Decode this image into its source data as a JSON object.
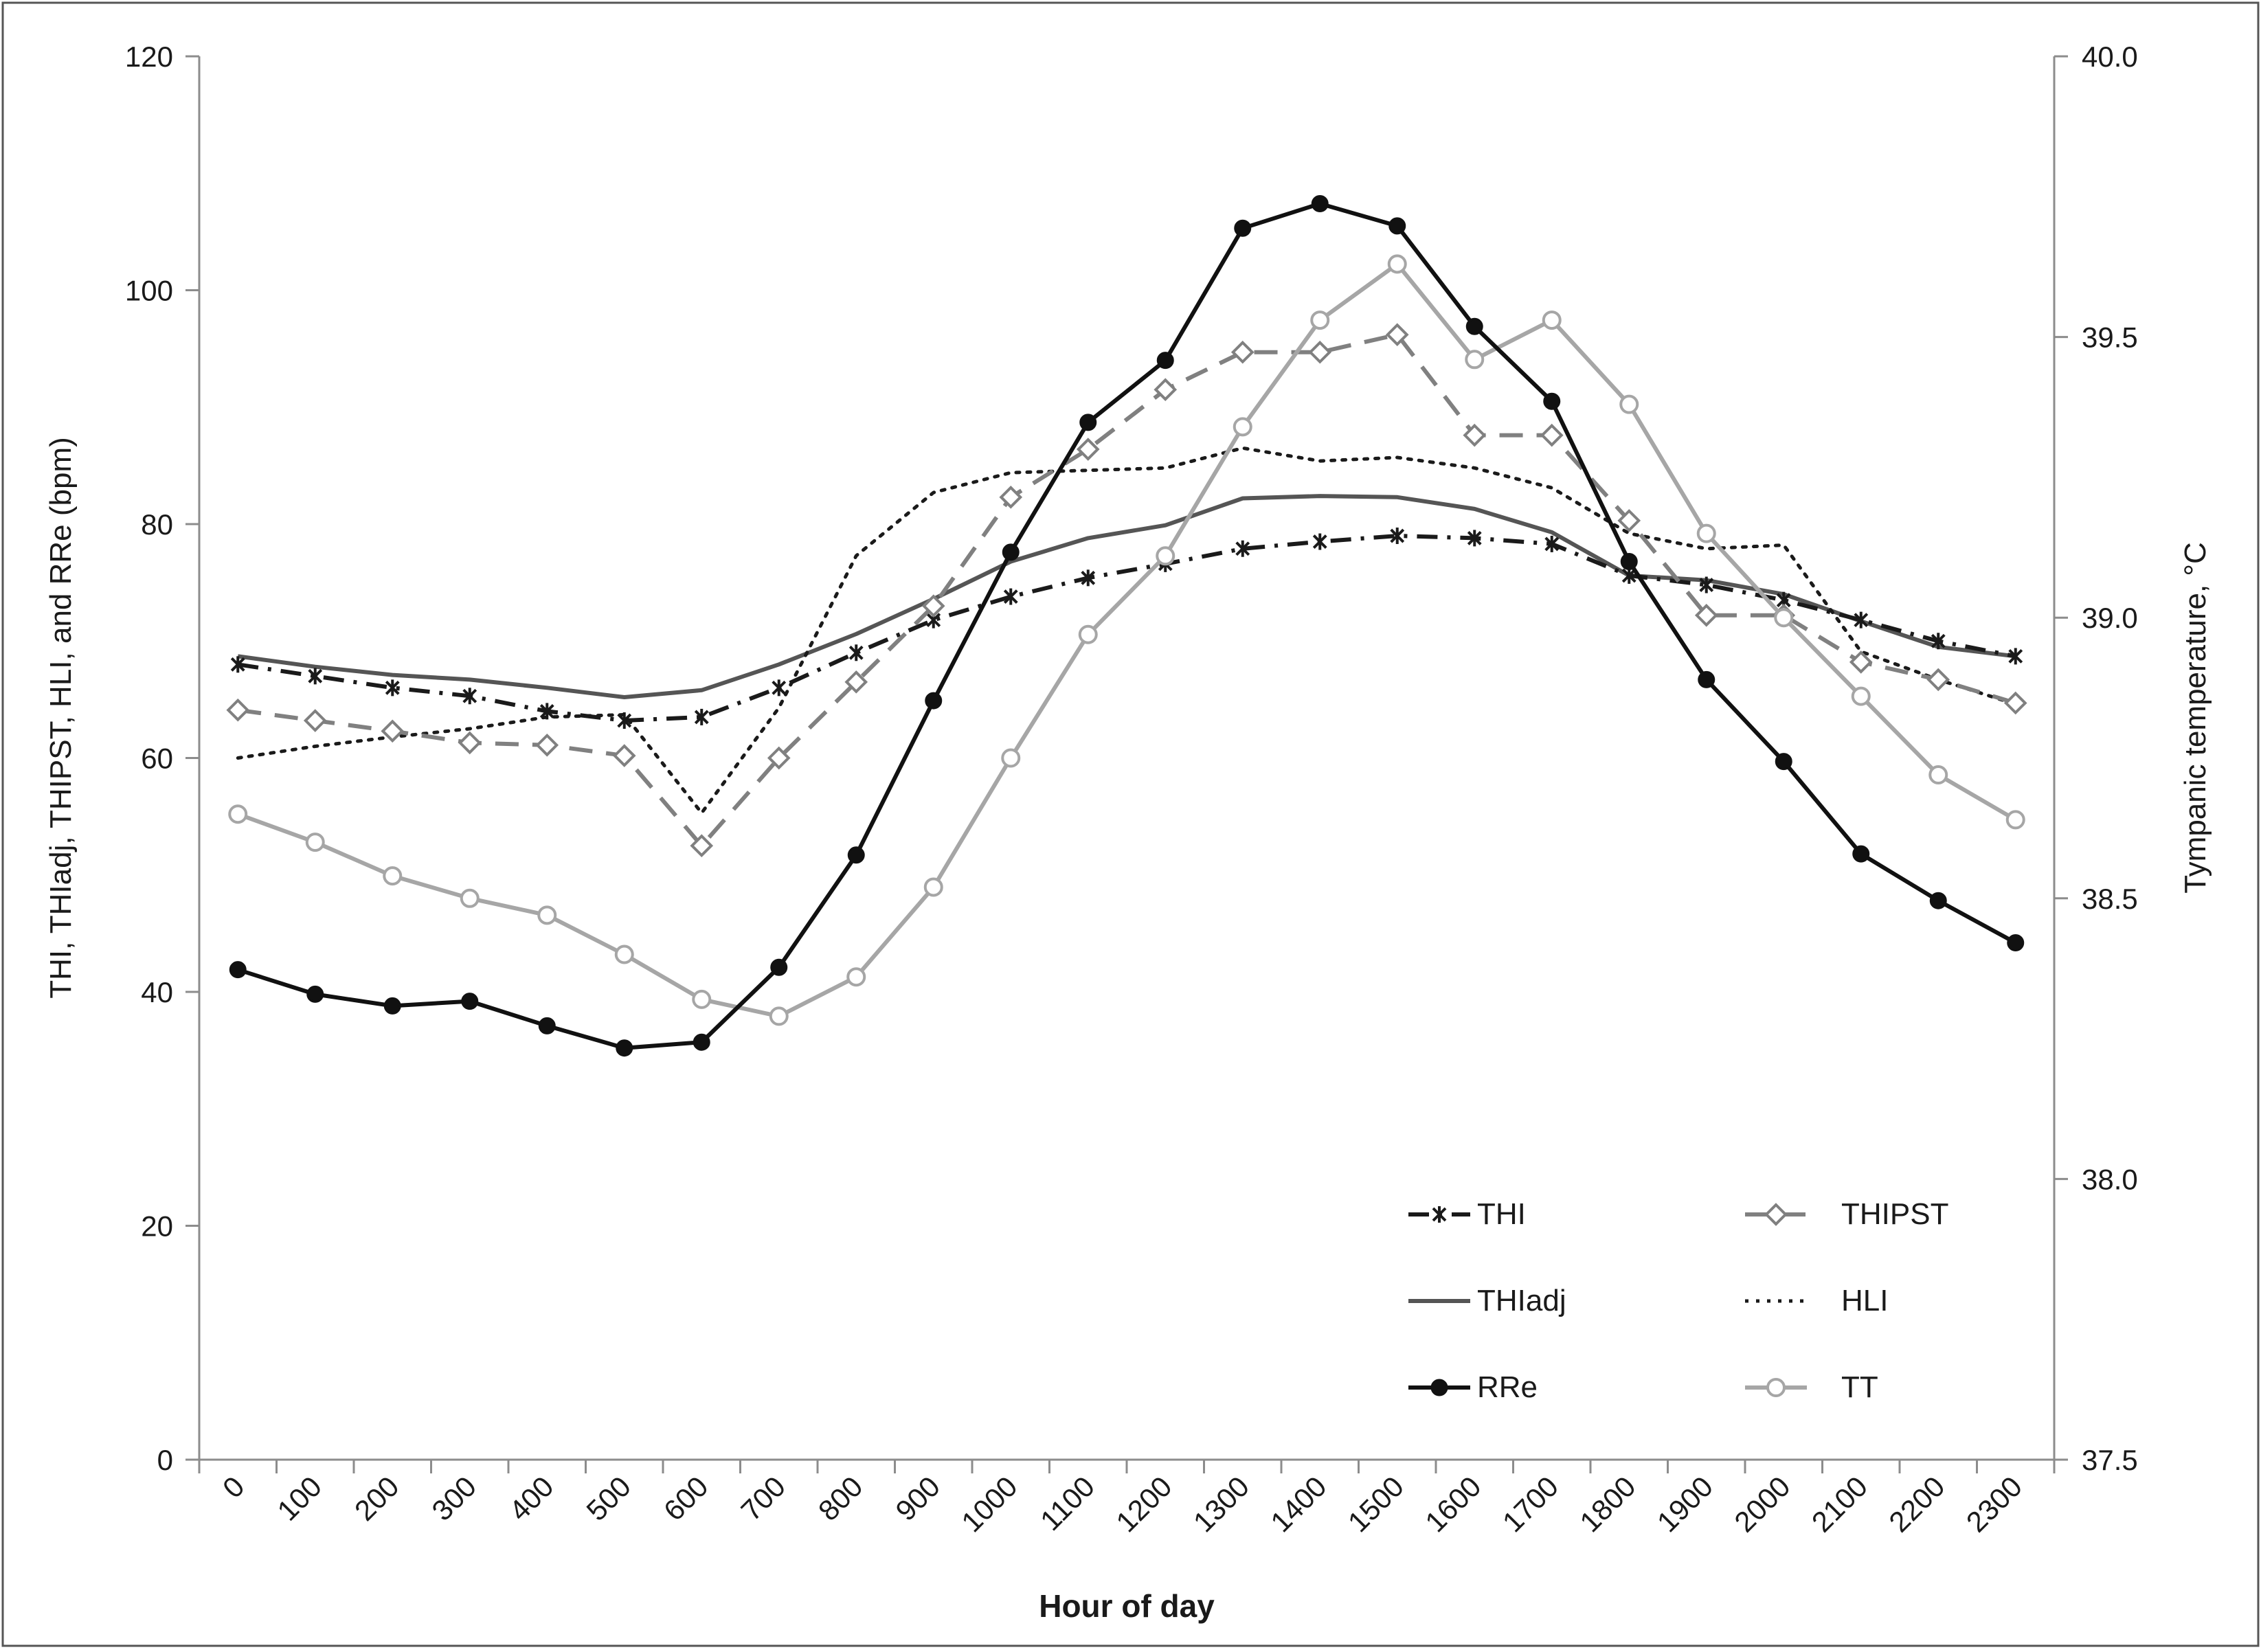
{
  "chart_data": {
    "type": "line",
    "xlabel": "Hour of day",
    "ylabel_left": "THI, THIadj, THIPST, HLI, and RRe (bpm)",
    "ylabel_right": "Tympanic temperature, °C",
    "categories": [
      "0",
      "100",
      "200",
      "300",
      "400",
      "500",
      "600",
      "700",
      "800",
      "900",
      "1000",
      "1100",
      "1200",
      "1300",
      "1400",
      "1500",
      "1600",
      "1700",
      "1800",
      "1900",
      "2000",
      "2100",
      "2200",
      "2300"
    ],
    "ylim_left": [
      0,
      120
    ],
    "yticks_left": [
      "0",
      "20",
      "40",
      "60",
      "80",
      "100",
      "120"
    ],
    "ylim_right": [
      37.5,
      40.0
    ],
    "yticks_right": [
      "37.5",
      "38.0",
      "38.5",
      "39.0",
      "39.5",
      "40.0"
    ],
    "grid": false,
    "legend_position": "bottom-right",
    "series": [
      {
        "name": "THI",
        "axis": "left",
        "color": "#1a1a1a",
        "style": "dashdot",
        "marker": "asterisk",
        "values": [
          68.0,
          67.0,
          66.0,
          65.3,
          64.0,
          63.2,
          63.5,
          66.0,
          69.0,
          71.8,
          73.8,
          75.4,
          76.6,
          77.9,
          78.5,
          79.0,
          78.8,
          78.3,
          75.6,
          74.8,
          73.5,
          71.8,
          70.0,
          68.7
        ]
      },
      {
        "name": "THIPST",
        "axis": "left",
        "color": "#808080",
        "style": "dashed",
        "marker": "diamond",
        "values": [
          64.1,
          63.2,
          62.3,
          61.3,
          61.1,
          60.2,
          52.5,
          60.0,
          66.5,
          73.0,
          82.3,
          86.4,
          91.5,
          94.7,
          94.7,
          96.2,
          87.6,
          87.6,
          80.3,
          72.2,
          72.2,
          68.2,
          66.7,
          64.7
        ]
      },
      {
        "name": "THIadj",
        "axis": "left",
        "color": "#555555",
        "style": "solid",
        "marker": "none",
        "values": [
          68.7,
          67.8,
          67.1,
          66.7,
          66.0,
          65.2,
          65.8,
          68.0,
          70.6,
          73.6,
          76.8,
          78.8,
          79.9,
          82.2,
          82.4,
          82.3,
          81.3,
          79.3,
          75.6,
          75.2,
          74.0,
          71.7,
          69.5,
          68.7
        ]
      },
      {
        "name": "HLI",
        "axis": "left",
        "color": "#1a1a1a",
        "style": "dotted",
        "marker": "none",
        "values": [
          60.0,
          61.0,
          61.8,
          62.5,
          63.5,
          63.7,
          55.3,
          64.3,
          77.3,
          82.7,
          84.4,
          84.6,
          84.8,
          86.5,
          85.4,
          85.7,
          84.8,
          83.1,
          79.2,
          77.9,
          78.2,
          69.1,
          66.7,
          64.6
        ]
      },
      {
        "name": "RRe",
        "axis": "left",
        "color": "#111111",
        "style": "solid",
        "marker": "filled-circle",
        "values": [
          41.9,
          39.8,
          38.8,
          39.2,
          37.1,
          35.2,
          35.7,
          42.1,
          51.7,
          64.9,
          77.6,
          88.7,
          94.0,
          105.3,
          107.4,
          105.5,
          96.9,
          90.5,
          76.8,
          66.7,
          59.7,
          51.8,
          47.8,
          44.2
        ]
      },
      {
        "name": "TT",
        "axis": "right",
        "color": "#a6a6a6",
        "style": "solid",
        "marker": "open-circle",
        "values": [
          38.65,
          38.6,
          38.54,
          38.5,
          38.47,
          38.4,
          38.32,
          38.29,
          38.36,
          38.52,
          38.75,
          38.97,
          39.11,
          39.34,
          39.53,
          39.63,
          39.46,
          39.53,
          39.38,
          39.15,
          39.0,
          38.86,
          38.72,
          38.64
        ]
      }
    ]
  }
}
